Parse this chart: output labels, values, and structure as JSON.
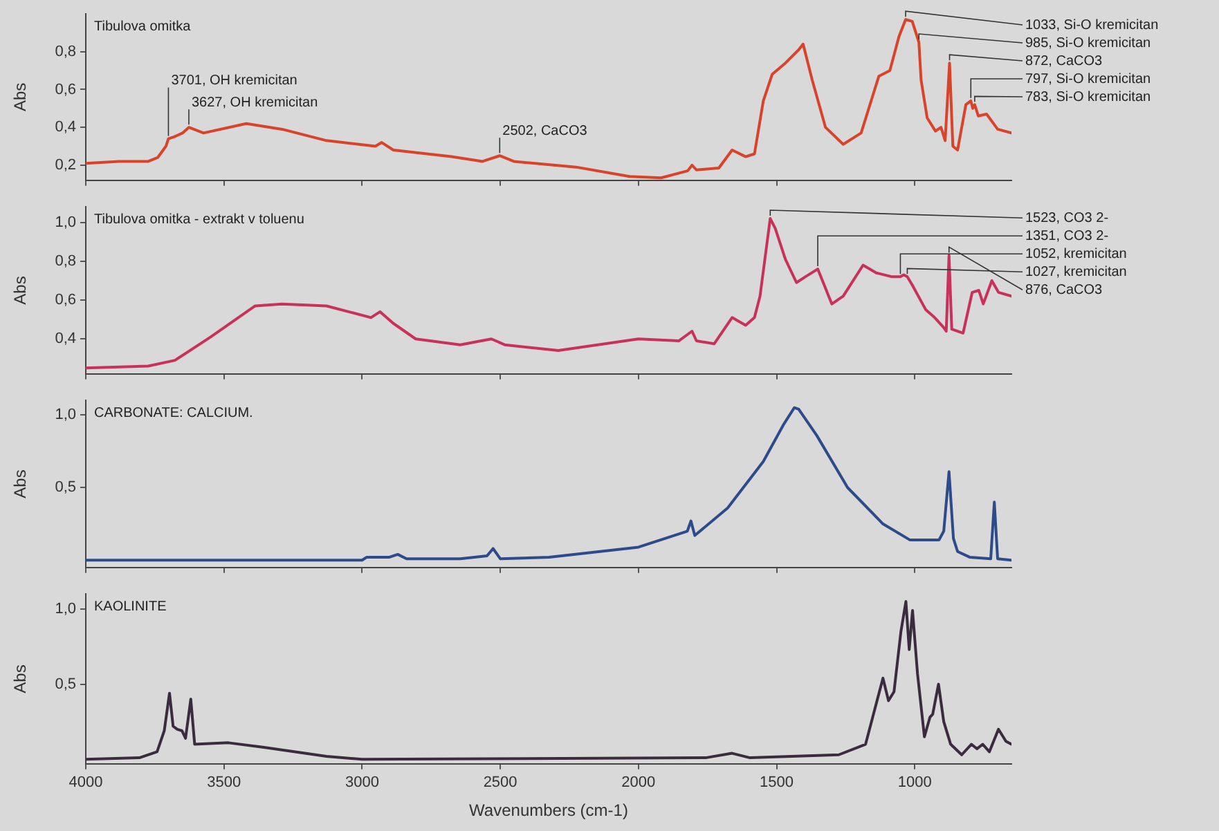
{
  "chart_data": [
    {
      "type": "line",
      "title": "Tibulova omitka",
      "ylabel": "Abs",
      "tick_labels": "y",
      "xlim": [
        4000,
        650
      ],
      "xticks": [
        4000,
        3500,
        3000,
        2500,
        2000,
        1500,
        1000
      ],
      "ylim": [
        0.12,
        1.0
      ],
      "yticks": [
        {
          "value": 0.2,
          "label": "0,2"
        },
        {
          "value": 0.4,
          "label": "0,4"
        },
        {
          "value": 0.6,
          "label": "0,6"
        },
        {
          "value": 0.8,
          "label": "0,8"
        }
      ],
      "x": [
        4000,
        3880,
        3774,
        3740,
        3710,
        3701,
        3680,
        3650,
        3627,
        3574,
        3419,
        3290,
        3129,
        2952,
        2929,
        2887,
        2677,
        2564,
        2502,
        2451,
        2226,
        2032,
        1918,
        1822,
        1806,
        1790,
        1709,
        1661,
        1612,
        1580,
        1548,
        1516,
        1468,
        1420,
        1404,
        1371,
        1323,
        1259,
        1194,
        1130,
        1090,
        1057,
        1033,
        1009,
        985,
        977,
        955,
        925,
        905,
        890,
        874,
        862,
        845,
        815,
        797,
        790,
        783,
        770,
        740,
        700,
        650
      ],
      "series": [
        {
          "color": "#d8432a",
          "values": [
            0.21,
            0.22,
            0.22,
            0.24,
            0.3,
            0.34,
            0.35,
            0.37,
            0.4,
            0.37,
            0.42,
            0.39,
            0.33,
            0.3,
            0.32,
            0.28,
            0.245,
            0.22,
            0.25,
            0.22,
            0.19,
            0.14,
            0.133,
            0.17,
            0.2,
            0.175,
            0.185,
            0.28,
            0.245,
            0.26,
            0.54,
            0.68,
            0.74,
            0.81,
            0.84,
            0.65,
            0.4,
            0.31,
            0.37,
            0.67,
            0.7,
            0.88,
            0.97,
            0.96,
            0.85,
            0.65,
            0.45,
            0.38,
            0.4,
            0.33,
            0.74,
            0.3,
            0.28,
            0.52,
            0.54,
            0.5,
            0.52,
            0.46,
            0.47,
            0.39,
            0.37
          ]
        }
      ],
      "annotations": [
        {
          "text": "3701, OH kremicitan",
          "x": 3701,
          "y": 0.34
        },
        {
          "text": "3627, OH kremicitan",
          "x": 3627,
          "y": 0.4
        },
        {
          "text": "2502, CaCO3",
          "x": 2502,
          "y": 0.25
        },
        {
          "text": "1033, Si-O kremicitan",
          "x": 1033,
          "y": 0.97
        },
        {
          "text": "985, Si-O kremicitan",
          "x": 985,
          "y": 0.85
        },
        {
          "text": "872, CaCO3",
          "x": 874,
          "y": 0.74
        },
        {
          "text": "797, Si-O kremicitan",
          "x": 797,
          "y": 0.54
        },
        {
          "text": "783, Si-O kremicitan",
          "x": 783,
          "y": 0.52
        }
      ]
    },
    {
      "type": "line",
      "title": "Tibulova omitka - extrakt v toluenu",
      "ylabel": "Abs",
      "tick_labels": "y",
      "xlim": [
        4000,
        650
      ],
      "xticks": [
        4000,
        3500,
        3000,
        2500,
        2000,
        1500,
        1000
      ],
      "ylim": [
        0.22,
        1.08
      ],
      "yticks": [
        {
          "value": 0.4,
          "label": "0,4"
        },
        {
          "value": 0.6,
          "label": "0,6"
        },
        {
          "value": 0.8,
          "label": "0,8"
        },
        {
          "value": 1.0,
          "label": "1,0"
        }
      ],
      "x": [
        4000,
        3774,
        3677,
        3548,
        3387,
        3290,
        3129,
        2968,
        2935,
        2887,
        2806,
        2645,
        2532,
        2484,
        2290,
        2000,
        1854,
        1806,
        1790,
        1726,
        1661,
        1612,
        1580,
        1560,
        1523,
        1505,
        1468,
        1428,
        1396,
        1351,
        1300,
        1259,
        1187,
        1139,
        1082,
        1052,
        1040,
        1027,
        1010,
        960,
        928,
        896,
        886,
        876,
        866,
        825,
        792,
        768,
        752,
        721,
        697,
        650
      ],
      "series": [
        {
          "color": "#c8325a",
          "values": [
            0.25,
            0.26,
            0.29,
            0.41,
            0.57,
            0.58,
            0.57,
            0.51,
            0.54,
            0.48,
            0.4,
            0.37,
            0.4,
            0.37,
            0.34,
            0.4,
            0.39,
            0.44,
            0.39,
            0.375,
            0.51,
            0.47,
            0.51,
            0.62,
            1.02,
            0.97,
            0.81,
            0.69,
            0.72,
            0.76,
            0.58,
            0.62,
            0.78,
            0.74,
            0.72,
            0.72,
            0.73,
            0.72,
            0.68,
            0.55,
            0.51,
            0.46,
            0.44,
            0.83,
            0.45,
            0.43,
            0.64,
            0.65,
            0.58,
            0.7,
            0.64,
            0.62
          ]
        }
      ],
      "annotations": [
        {
          "text": "1523, CO3 2-",
          "x": 1523,
          "y": 1.02
        },
        {
          "text": "1351, CO3 2-",
          "x": 1351,
          "y": 0.76
        },
        {
          "text": "1052, kremicitan",
          "x": 1052,
          "y": 0.72
        },
        {
          "text": "1027, kremicitan",
          "x": 1027,
          "y": 0.72
        },
        {
          "text": "876, CaCO3",
          "x": 876,
          "y": 0.83
        }
      ]
    },
    {
      "type": "line",
      "title": "CARBONATE: CALCIUM.",
      "ylabel": "Abs",
      "tick_labels": "y",
      "xlim": [
        4000,
        650
      ],
      "xticks": [
        4000,
        3500,
        3000,
        2500,
        2000,
        1500,
        1000
      ],
      "ylim": [
        -0.05,
        1.1
      ],
      "yticks": [
        {
          "value": 0.5,
          "label": "0,5"
        },
        {
          "value": 1.0,
          "label": "1,0"
        }
      ],
      "x": [
        4000,
        3000,
        2984,
        2903,
        2871,
        2839,
        2645,
        2548,
        2526,
        2500,
        2323,
        2000,
        1823,
        1810,
        1796,
        1677,
        1548,
        1476,
        1436,
        1420,
        1355,
        1243,
        1115,
        1018,
        912,
        895,
        876,
        860,
        845,
        800,
        725,
        712,
        700,
        650
      ],
      "series": [
        {
          "color": "#2d4a8a",
          "values": [
            0,
            0,
            0.02,
            0.02,
            0.04,
            0.01,
            0.01,
            0.03,
            0.08,
            0.01,
            0.02,
            0.09,
            0.2,
            0.27,
            0.17,
            0.36,
            0.68,
            0.93,
            1.05,
            1.04,
            0.86,
            0.5,
            0.25,
            0.14,
            0.14,
            0.2,
            0.61,
            0.15,
            0.06,
            0.02,
            0.01,
            0.4,
            0.01,
            0
          ]
        }
      ]
    },
    {
      "type": "line",
      "title": "KAOLINITE",
      "ylabel": "Abs",
      "xlabel": "Wavenumbers (cm-1)",
      "xlim": [
        4000,
        650
      ],
      "xticks": [
        4000,
        3500,
        3000,
        2500,
        2000,
        1500,
        1000
      ],
      "ylim": [
        -0.03,
        1.1
      ],
      "yticks": [
        {
          "value": 0.5,
          "label": "0,5"
        },
        {
          "value": 1.0,
          "label": "1,0"
        }
      ],
      "x": [
        4000,
        3806,
        3742,
        3716,
        3697,
        3684,
        3669,
        3652,
        3639,
        3620,
        3606,
        3484,
        3355,
        3129,
        3000,
        1757,
        1661,
        1596,
        1275,
        1178,
        1115,
        1095,
        1075,
        1050,
        1032,
        1020,
        1008,
        990,
        965,
        945,
        935,
        914,
        895,
        870,
        830,
        795,
        775,
        754,
        730,
        697,
        670,
        650
      ],
      "series": [
        {
          "color": "#3a2b3f",
          "values": [
            0,
            0.01,
            0.05,
            0.19,
            0.44,
            0.22,
            0.2,
            0.19,
            0.14,
            0.4,
            0.1,
            0.11,
            0.08,
            0.02,
            0,
            0.01,
            0.04,
            0.01,
            0.03,
            0.1,
            0.54,
            0.39,
            0.45,
            0.85,
            1.05,
            0.73,
            0.99,
            0.57,
            0.15,
            0.28,
            0.3,
            0.5,
            0.25,
            0.1,
            0.03,
            0.1,
            0.07,
            0.1,
            0.05,
            0.2,
            0.12,
            0.1
          ]
        }
      ]
    }
  ]
}
